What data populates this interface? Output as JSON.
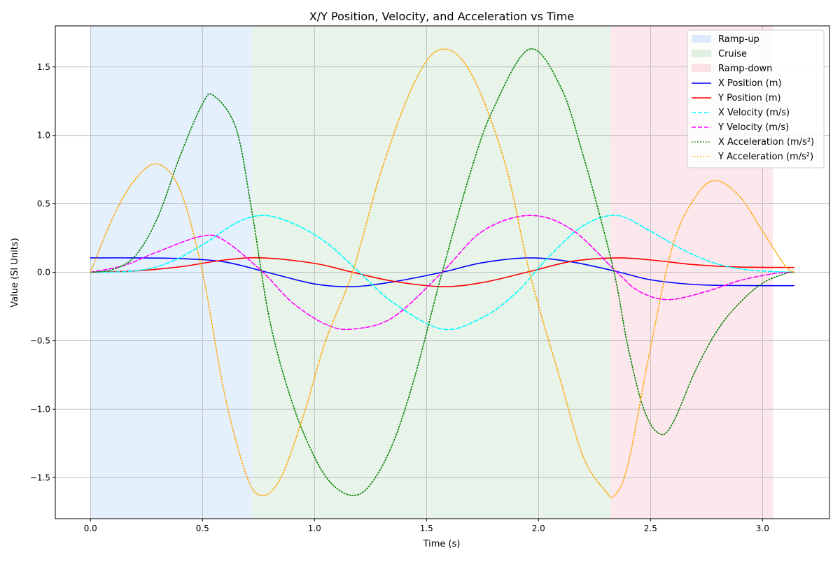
{
  "chart_data": {
    "type": "line",
    "title": "X/Y Position, Velocity, and Acceleration vs Time",
    "xlabel": "Time (s)",
    "ylabel": "Value (SI Units)",
    "xlim": [
      -0.157,
      3.299
    ],
    "ylim": [
      -1.8,
      1.8
    ],
    "xticks": [
      0.0,
      0.5,
      1.0,
      1.5,
      2.0,
      2.5,
      3.0
    ],
    "xtick_labels": [
      "0.0",
      "0.5",
      "1.0",
      "1.5",
      "2.0",
      "2.5",
      "3.0"
    ],
    "yticks": [
      -1.5,
      -1.0,
      -0.5,
      0.0,
      0.5,
      1.0,
      1.5
    ],
    "ytick_labels": [
      "−1.5",
      "−1.0",
      "−0.5",
      "0.0",
      "0.5",
      "1.0",
      "1.5"
    ],
    "grid": true,
    "legend_position": "top-right",
    "regions": [
      {
        "name": "Ramp-up",
        "x0": 0.0,
        "x1": 0.723,
        "color": "#cfe3fb"
      },
      {
        "name": "Cruise",
        "x0": 0.723,
        "x1": 2.323,
        "color": "#d5ebd7"
      },
      {
        "name": "Ramp-down",
        "x0": 2.323,
        "x1": 3.047,
        "color": "#f9d6dc"
      }
    ],
    "series": [
      {
        "name": "X Position (m)",
        "color": "#0000ff",
        "dash": "solid",
        "x": [
          0.0,
          0.2,
          0.4,
          0.6,
          0.8,
          1.0,
          1.17,
          1.35,
          1.57,
          1.75,
          1.96,
          2.15,
          2.35,
          2.5,
          2.7,
          2.9,
          3.14
        ],
        "y": [
          0.105,
          0.105,
          0.1,
          0.075,
          -0.005,
          -0.085,
          -0.105,
          -0.07,
          0.0,
          0.07,
          0.105,
          0.075,
          0.005,
          -0.055,
          -0.09,
          -0.097,
          -0.098
        ]
      },
      {
        "name": "Y Position (m)",
        "color": "#ff0000",
        "dash": "solid",
        "x": [
          0.0,
          0.2,
          0.4,
          0.6,
          0.77,
          1.0,
          1.17,
          1.35,
          1.57,
          1.75,
          1.96,
          2.15,
          2.35,
          2.5,
          2.7,
          2.9,
          3.14
        ],
        "y": [
          0.0,
          0.01,
          0.04,
          0.09,
          0.105,
          0.065,
          0.0,
          -0.065,
          -0.105,
          -0.075,
          0.005,
          0.08,
          0.105,
          0.09,
          0.055,
          0.038,
          0.035
        ]
      },
      {
        "name": "X Velocity (m/s)",
        "color": "#00ffff",
        "dash": "dashed",
        "x": [
          0.0,
          0.2,
          0.35,
          0.5,
          0.65,
          0.77,
          0.9,
          1.05,
          1.2,
          1.35,
          1.57,
          1.75,
          1.9,
          2.05,
          2.2,
          2.35,
          2.5,
          2.65,
          2.8,
          2.95,
          3.14
        ],
        "y": [
          0.0,
          0.01,
          0.07,
          0.2,
          0.36,
          0.415,
          0.36,
          0.22,
          0.0,
          -0.22,
          -0.415,
          -0.33,
          -0.15,
          0.12,
          0.34,
          0.415,
          0.3,
          0.16,
          0.06,
          0.015,
          0.0
        ]
      },
      {
        "name": "Y Velocity (m/s)",
        "color": "#ff00ff",
        "dash": "dashed",
        "x": [
          0.0,
          0.15,
          0.3,
          0.5,
          0.6,
          0.77,
          0.9,
          1.05,
          1.17,
          1.35,
          1.57,
          1.75,
          1.96,
          2.15,
          2.35,
          2.45,
          2.58,
          2.75,
          2.9,
          3.05,
          3.14
        ],
        "y": [
          0.0,
          0.05,
          0.15,
          0.265,
          0.23,
          0.0,
          -0.22,
          -0.38,
          -0.415,
          -0.33,
          0.0,
          0.3,
          0.415,
          0.31,
          0.0,
          -0.14,
          -0.2,
          -0.14,
          -0.06,
          -0.01,
          0.0
        ]
      },
      {
        "name": "X Acceleration (m/s²)",
        "color": "#008000",
        "dash": "dotted",
        "x": [
          0.0,
          0.1,
          0.2,
          0.3,
          0.4,
          0.5,
          0.55,
          0.65,
          0.72,
          0.8,
          0.9,
          1.0,
          1.08,
          1.17,
          1.25,
          1.35,
          1.45,
          1.57,
          1.7,
          1.8,
          1.96,
          2.1,
          2.2,
          2.3,
          2.35,
          2.4,
          2.47,
          2.54,
          2.6,
          2.7,
          2.8,
          2.9,
          3.0,
          3.1,
          3.14
        ],
        "y": [
          0.0,
          0.02,
          0.12,
          0.4,
          0.85,
          1.23,
          1.29,
          1.05,
          0.45,
          -0.35,
          -0.95,
          -1.35,
          -1.55,
          -1.63,
          -1.55,
          -1.25,
          -0.75,
          0.0,
          0.75,
          1.2,
          1.63,
          1.35,
          0.85,
          0.25,
          -0.1,
          -0.55,
          -1.0,
          -1.18,
          -1.1,
          -0.72,
          -0.42,
          -0.22,
          -0.08,
          -0.01,
          0.0
        ]
      },
      {
        "name": "Y Acceleration (m/s²)",
        "color": "#ffa500",
        "dash": "dotted",
        "x": [
          0.0,
          0.1,
          0.2,
          0.3,
          0.4,
          0.5,
          0.6,
          0.7,
          0.77,
          0.85,
          0.95,
          1.05,
          1.17,
          1.3,
          1.45,
          1.57,
          1.7,
          1.85,
          1.96,
          2.1,
          2.2,
          2.3,
          2.34,
          2.4,
          2.5,
          2.6,
          2.7,
          2.79,
          2.9,
          3.0,
          3.1,
          3.14
        ],
        "y": [
          0.0,
          0.4,
          0.68,
          0.79,
          0.6,
          0.0,
          -0.9,
          -1.5,
          -1.63,
          -1.5,
          -1.05,
          -0.5,
          0.0,
          0.75,
          1.4,
          1.63,
          1.45,
          0.8,
          0.0,
          -0.8,
          -1.35,
          -1.6,
          -1.63,
          -1.4,
          -0.55,
          0.2,
          0.55,
          0.67,
          0.55,
          0.3,
          0.05,
          0.0
        ]
      }
    ]
  }
}
